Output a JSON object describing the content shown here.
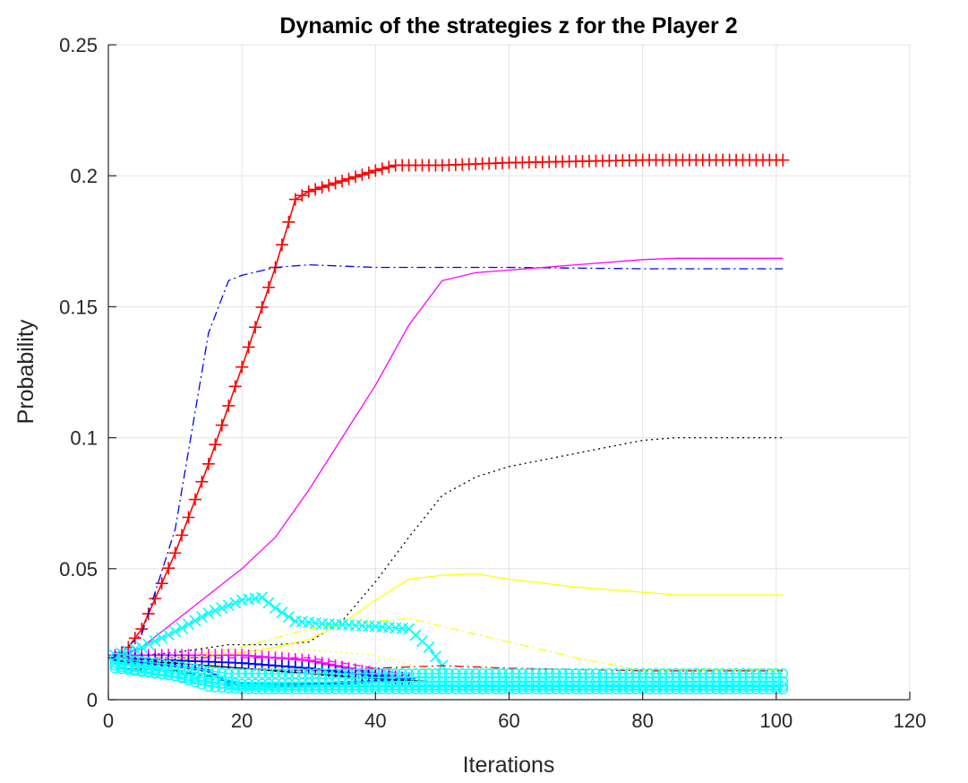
{
  "chart_data": {
    "type": "line",
    "title": "Dynamic of the strategies z for the Player 2",
    "xlabel": "Iterations",
    "ylabel": "Probability",
    "xlim": [
      0,
      120
    ],
    "ylim": [
      0,
      0.25
    ],
    "xticks": [
      0,
      20,
      40,
      60,
      80,
      100,
      120
    ],
    "yticks": [
      0,
      0.05,
      0.1,
      0.15,
      0.2,
      0.25
    ],
    "xtick_labels": [
      "0",
      "20",
      "40",
      "60",
      "80",
      "100",
      "120"
    ],
    "ytick_labels": [
      "0",
      "0.05",
      "0.1",
      "0.15",
      "0.2",
      "0.25"
    ],
    "grid": true,
    "legend": "none",
    "series": [
      {
        "color": "#ff0000",
        "style": "solid",
        "marker": "plus",
        "marker_every": 1,
        "points": [
          [
            1,
            0.016
          ],
          [
            3,
            0.02
          ],
          [
            5,
            0.027
          ],
          [
            10,
            0.056
          ],
          [
            15,
            0.09
          ],
          [
            20,
            0.127
          ],
          [
            25,
            0.165
          ],
          [
            28,
            0.191
          ],
          [
            30,
            0.194
          ],
          [
            35,
            0.198
          ],
          [
            40,
            0.202
          ],
          [
            43,
            0.204
          ],
          [
            50,
            0.204
          ],
          [
            60,
            0.205
          ],
          [
            80,
            0.206
          ],
          [
            101,
            0.206
          ]
        ]
      },
      {
        "color": "#0000ff",
        "style": "dashdot",
        "marker": "none",
        "points": [
          [
            1,
            0.016
          ],
          [
            5,
            0.025
          ],
          [
            10,
            0.065
          ],
          [
            15,
            0.14
          ],
          [
            18,
            0.16
          ],
          [
            20,
            0.162
          ],
          [
            25,
            0.165
          ],
          [
            30,
            0.166
          ],
          [
            40,
            0.165
          ],
          [
            50,
            0.165
          ],
          [
            60,
            0.165
          ],
          [
            80,
            0.1645
          ],
          [
            101,
            0.1645
          ]
        ]
      },
      {
        "color": "#ff00ff",
        "style": "solid",
        "marker": "none",
        "points": [
          [
            1,
            0.016
          ],
          [
            5,
            0.02
          ],
          [
            10,
            0.03
          ],
          [
            15,
            0.04
          ],
          [
            20,
            0.05
          ],
          [
            25,
            0.062
          ],
          [
            30,
            0.08
          ],
          [
            35,
            0.1
          ],
          [
            40,
            0.12
          ],
          [
            45,
            0.143
          ],
          [
            50,
            0.16
          ],
          [
            55,
            0.163
          ],
          [
            60,
            0.164
          ],
          [
            70,
            0.166
          ],
          [
            80,
            0.168
          ],
          [
            85,
            0.1685
          ],
          [
            101,
            0.1685
          ]
        ]
      },
      {
        "color": "#000000",
        "style": "dotted",
        "marker": "none",
        "points": [
          [
            1,
            0.016
          ],
          [
            10,
            0.018
          ],
          [
            18,
            0.021
          ],
          [
            25,
            0.021
          ],
          [
            30,
            0.022
          ],
          [
            35,
            0.03
          ],
          [
            40,
            0.045
          ],
          [
            45,
            0.062
          ],
          [
            50,
            0.078
          ],
          [
            55,
            0.085
          ],
          [
            60,
            0.089
          ],
          [
            70,
            0.094
          ],
          [
            80,
            0.099
          ],
          [
            85,
            0.1
          ],
          [
            101,
            0.1
          ]
        ]
      },
      {
        "color": "#ffff00",
        "style": "solid",
        "marker": "none",
        "points": [
          [
            1,
            0.016
          ],
          [
            10,
            0.015
          ],
          [
            20,
            0.018
          ],
          [
            25,
            0.02
          ],
          [
            30,
            0.023
          ],
          [
            35,
            0.029
          ],
          [
            40,
            0.038
          ],
          [
            45,
            0.046
          ],
          [
            50,
            0.0475
          ],
          [
            55,
            0.048
          ],
          [
            60,
            0.046
          ],
          [
            70,
            0.043
          ],
          [
            85,
            0.04
          ],
          [
            101,
            0.04
          ]
        ]
      },
      {
        "color": "#ffff00",
        "style": "dashdot",
        "marker": "none",
        "points": [
          [
            1,
            0.016
          ],
          [
            10,
            0.016
          ],
          [
            20,
            0.02
          ],
          [
            30,
            0.027
          ],
          [
            40,
            0.03
          ],
          [
            45,
            0.031
          ],
          [
            50,
            0.028
          ],
          [
            60,
            0.022
          ],
          [
            70,
            0.016
          ],
          [
            80,
            0.011
          ],
          [
            90,
            0.011
          ],
          [
            101,
            0.011
          ]
        ]
      },
      {
        "color": "#00ffff",
        "style": "solid",
        "marker": "cross",
        "marker_every": 1,
        "points": [
          [
            1,
            0.017
          ],
          [
            5,
            0.02
          ],
          [
            10,
            0.026
          ],
          [
            15,
            0.033
          ],
          [
            20,
            0.038
          ],
          [
            23,
            0.039
          ],
          [
            25,
            0.035
          ],
          [
            28,
            0.03
          ],
          [
            32,
            0.029
          ],
          [
            40,
            0.028
          ],
          [
            45,
            0.027
          ],
          [
            48,
            0.02
          ],
          [
            50,
            0.013
          ]
        ]
      },
      {
        "color": "#ff0000",
        "style": "dashdot",
        "marker": "none",
        "points": [
          [
            1,
            0.016
          ],
          [
            10,
            0.014
          ],
          [
            20,
            0.012
          ],
          [
            30,
            0.011
          ],
          [
            40,
            0.012
          ],
          [
            50,
            0.013
          ],
          [
            60,
            0.012
          ],
          [
            80,
            0.011
          ],
          [
            101,
            0.011
          ]
        ]
      },
      {
        "color": "#ff00ff",
        "style": "solid",
        "marker": "plus",
        "marker_every": 1,
        "points": [
          [
            1,
            0.017
          ],
          [
            10,
            0.017
          ],
          [
            20,
            0.017
          ],
          [
            25,
            0.016
          ],
          [
            30,
            0.015
          ],
          [
            40,
            0.01
          ],
          [
            45,
            0.008
          ]
        ]
      },
      {
        "color": "#0000ff",
        "style": "solid",
        "marker": "plus",
        "marker_every": 1,
        "points": [
          [
            1,
            0.016
          ],
          [
            10,
            0.015
          ],
          [
            20,
            0.014
          ],
          [
            25,
            0.013
          ],
          [
            30,
            0.012
          ],
          [
            40,
            0.009
          ],
          [
            45,
            0.008
          ]
        ]
      },
      {
        "color": "#0000ff",
        "style": "solid",
        "marker": "point",
        "marker_every": 1,
        "points": [
          [
            1,
            0.015
          ],
          [
            10,
            0.013
          ],
          [
            15,
            0.011
          ],
          [
            18,
            0.006
          ],
          [
            25,
            0.006
          ],
          [
            30,
            0.006
          ],
          [
            40,
            0.007
          ],
          [
            45,
            0.007
          ]
        ]
      },
      {
        "color": "#000000",
        "style": "dashdot",
        "marker": "none",
        "points": [
          [
            1,
            0.012
          ],
          [
            10,
            0.011
          ],
          [
            15,
            0.009
          ],
          [
            20,
            0.006
          ],
          [
            30,
            0.005
          ],
          [
            45,
            0.005
          ]
        ]
      },
      {
        "color": "#ff00ff",
        "style": "dashed",
        "marker": "none",
        "points": [
          [
            1,
            0.016
          ],
          [
            10,
            0.016
          ],
          [
            20,
            0.016
          ],
          [
            30,
            0.016
          ],
          [
            40,
            0.012
          ],
          [
            45,
            0.009
          ]
        ]
      },
      {
        "color": "#ffff00",
        "style": "dotted",
        "marker": "none",
        "points": [
          [
            1,
            0.016
          ],
          [
            10,
            0.016
          ],
          [
            20,
            0.018
          ],
          [
            30,
            0.019
          ],
          [
            40,
            0.017
          ],
          [
            50,
            0.01
          ]
        ]
      },
      {
        "color": "#000000",
        "style": "solid",
        "marker": "none",
        "points": [
          [
            1,
            0.015
          ],
          [
            10,
            0.014
          ],
          [
            20,
            0.012
          ],
          [
            30,
            0.01
          ],
          [
            40,
            0.008
          ],
          [
            48,
            0.007
          ]
        ]
      },
      {
        "color": "#00ffff",
        "style": "solid",
        "marker": "circle",
        "marker_every": 1,
        "points": [
          [
            1,
            0.016
          ],
          [
            10,
            0.013
          ],
          [
            15,
            0.011
          ],
          [
            18,
            0.01
          ],
          [
            30,
            0.01
          ],
          [
            45,
            0.01
          ],
          [
            60,
            0.01
          ],
          [
            80,
            0.01
          ],
          [
            101,
            0.01
          ]
        ]
      },
      {
        "color": "#00ffff",
        "style": "solid",
        "marker": "circle",
        "marker_every": 1,
        "points": [
          [
            1,
            0.014
          ],
          [
            5,
            0.012
          ],
          [
            10,
            0.01
          ],
          [
            15,
            0.008
          ],
          [
            20,
            0.006
          ],
          [
            30,
            0.0065
          ],
          [
            45,
            0.007
          ],
          [
            60,
            0.007
          ],
          [
            80,
            0.007
          ],
          [
            101,
            0.007
          ]
        ]
      },
      {
        "color": "#00ffff",
        "style": "solid",
        "marker": "circle",
        "marker_every": 1,
        "points": [
          [
            1,
            0.013
          ],
          [
            5,
            0.011
          ],
          [
            10,
            0.009
          ],
          [
            15,
            0.005
          ],
          [
            20,
            0.004
          ],
          [
            30,
            0.004
          ],
          [
            45,
            0.004
          ],
          [
            60,
            0.004
          ],
          [
            80,
            0.004
          ],
          [
            101,
            0.004
          ]
        ]
      },
      {
        "color": "#00ffff",
        "style": "solid",
        "marker": "circle",
        "marker_every": 1,
        "points": [
          [
            1,
            0.012
          ],
          [
            10,
            0.009
          ],
          [
            20,
            0.005
          ],
          [
            30,
            0.005
          ],
          [
            45,
            0.005
          ],
          [
            60,
            0.005
          ],
          [
            80,
            0.005
          ],
          [
            101,
            0.005
          ]
        ]
      }
    ]
  }
}
